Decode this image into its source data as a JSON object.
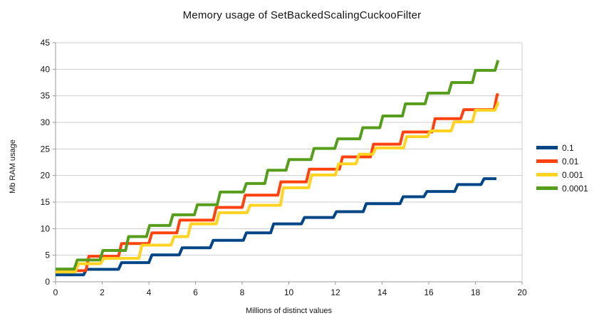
{
  "chart_data": {
    "type": "line",
    "step": true,
    "title": "Memory usage of SetBackedScalingCuckooFilter",
    "xlabel": "Millions of distinct values",
    "ylabel": "Mb RAM usage",
    "xlim": [
      0,
      20
    ],
    "ylim": [
      0,
      45
    ],
    "x_ticks": [
      0,
      2,
      4,
      6,
      8,
      10,
      12,
      14,
      16,
      18,
      20
    ],
    "y_ticks": [
      0,
      5,
      10,
      15,
      20,
      25,
      30,
      35,
      40,
      45
    ],
    "grid": "horizontal",
    "legend_position": "right",
    "axis_color": "#999999",
    "grid_color": "#cccccc",
    "text_color": "#141414",
    "series": [
      {
        "name": "0.1",
        "color": "#004586",
        "end_x": 18.9,
        "steps": [
          [
            0,
            1.3
          ],
          [
            1.2,
            2.35
          ],
          [
            2.7,
            3.6
          ],
          [
            4.0,
            5.05
          ],
          [
            5.3,
            6.4
          ],
          [
            6.63,
            7.8
          ],
          [
            8.05,
            9.2
          ],
          [
            9.22,
            10.9
          ],
          [
            10.54,
            12.1
          ],
          [
            11.91,
            13.2
          ],
          [
            13.19,
            14.7
          ],
          [
            14.77,
            16.0
          ],
          [
            15.79,
            17.0
          ],
          [
            17.11,
            18.3
          ],
          [
            18.24,
            19.4
          ]
        ]
      },
      {
        "name": "0.01",
        "color": "#ff420e",
        "end_x": 19.0,
        "steps": [
          [
            0,
            2.1
          ],
          [
            1.3,
            4.8
          ],
          [
            2.7,
            7.2
          ],
          [
            4.0,
            9.2
          ],
          [
            5.2,
            11.6
          ],
          [
            6.76,
            14.0
          ],
          [
            8.0,
            16.3
          ],
          [
            9.53,
            18.8
          ],
          [
            10.75,
            21.2
          ],
          [
            12.17,
            23.5
          ],
          [
            13.5,
            25.9
          ],
          [
            14.77,
            28.2
          ],
          [
            16.14,
            30.7
          ],
          [
            17.37,
            32.4
          ],
          [
            18.8,
            35.2
          ]
        ]
      },
      {
        "name": "0.001",
        "color": "#ffd320",
        "end_x": 19.0,
        "steps": [
          [
            0,
            1.85
          ],
          [
            0.85,
            3.4
          ],
          [
            1.93,
            4.4
          ],
          [
            3.57,
            6.9
          ],
          [
            4.95,
            8.5
          ],
          [
            5.67,
            10.9
          ],
          [
            6.89,
            13.0
          ],
          [
            8.21,
            14.4
          ],
          [
            9.64,
            17.7
          ],
          [
            10.85,
            20.1
          ],
          [
            12.0,
            22.2
          ],
          [
            12.88,
            24.0
          ],
          [
            13.6,
            25.2
          ],
          [
            14.92,
            27.3
          ],
          [
            15.94,
            28.4
          ],
          [
            16.96,
            30.1
          ],
          [
            17.87,
            32.3
          ],
          [
            18.84,
            33.7
          ]
        ]
      },
      {
        "name": "0.0001",
        "color": "#579d1c",
        "end_x": 18.97,
        "steps": [
          [
            0,
            2.4
          ],
          [
            0.8,
            4.1
          ],
          [
            1.9,
            5.9
          ],
          [
            3.0,
            8.5
          ],
          [
            3.9,
            10.6
          ],
          [
            4.9,
            12.6
          ],
          [
            5.95,
            14.5
          ],
          [
            6.93,
            16.9
          ],
          [
            8.05,
            18.5
          ],
          [
            8.97,
            21.0
          ],
          [
            9.88,
            23.0
          ],
          [
            10.95,
            25.1
          ],
          [
            11.97,
            26.9
          ],
          [
            13.04,
            29.0
          ],
          [
            13.9,
            31.2
          ],
          [
            14.87,
            33.5
          ],
          [
            15.84,
            35.5
          ],
          [
            16.85,
            37.5
          ],
          [
            17.87,
            39.8
          ],
          [
            18.84,
            41.7
          ]
        ]
      }
    ]
  }
}
